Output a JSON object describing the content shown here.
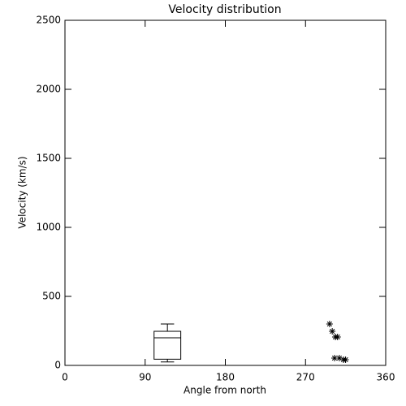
{
  "chart_data": [
    {
      "type": "box",
      "title": "Velocity distribution",
      "xlabel": "Angle from north",
      "ylabel": "Velocity (km/s)",
      "xlim": [
        0,
        360
      ],
      "xticks": [
        0,
        90,
        180,
        270,
        360
      ],
      "ylim": [
        0,
        2500
      ],
      "yticks": [
        0,
        500,
        1000,
        1500,
        2000,
        2500
      ],
      "color": "#000000",
      "box": {
        "x": 115,
        "width": 30,
        "min": 25,
        "q1": 45,
        "median": 200,
        "q3": 247,
        "max": 300
      }
    },
    {
      "type": "scatter",
      "color": "#000000",
      "x": [
        297,
        300,
        303.5,
        306,
        302.6,
        308,
        312.6,
        315
      ],
      "y": [
        300,
        247,
        206,
        206,
        53,
        53,
        41,
        41
      ]
    }
  ]
}
